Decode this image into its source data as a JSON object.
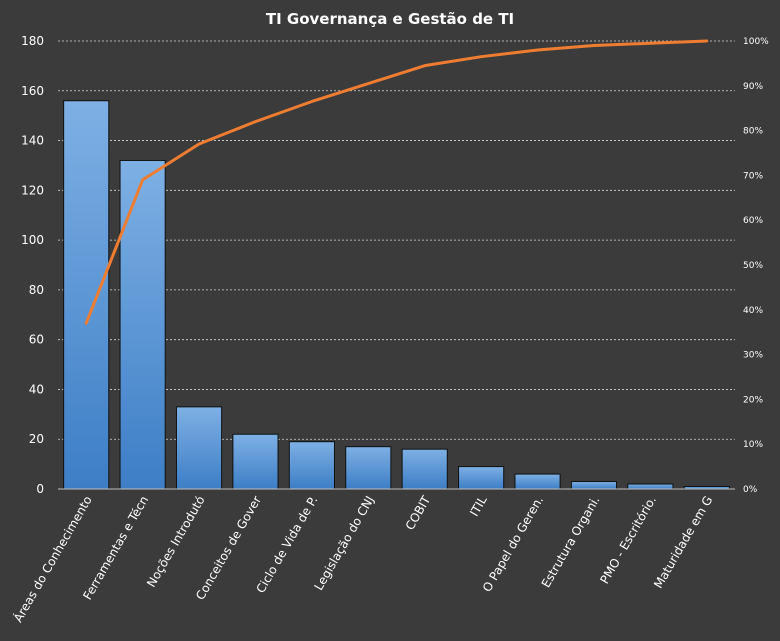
{
  "chart_data": {
    "type": "bar",
    "title": "TI Governança  e Gestão  de TI",
    "categories": [
      "Áreas do Conhecimento",
      "Ferramentas e Técn",
      "Noções Introdutó",
      "Conceitos de Gover",
      "Ciclo de Vida de P.",
      "Legislação do CNJ",
      "COBIT",
      "ITIL",
      "O Papel do Geren.",
      "Estrutura Organi.",
      "PMO - Escritório.",
      "Maturidade em G"
    ],
    "series": [
      {
        "type": "bar",
        "axis": "left",
        "values": [
          156,
          132,
          33,
          22,
          19,
          17,
          16,
          9,
          6,
          3,
          2,
          1
        ]
      },
      {
        "type": "line",
        "axis": "right",
        "values": [
          37,
          69,
          77,
          82,
          86.5,
          90.5,
          94.5,
          96.5,
          98,
          99,
          99.5,
          100
        ]
      }
    ],
    "ylim": [
      0,
      180
    ],
    "yticks": [
      "0",
      "20",
      "40",
      "60",
      "80",
      "100",
      "120",
      "140",
      "160",
      "180"
    ],
    "y2lim": [
      0,
      100
    ],
    "y2ticks": [
      "0%",
      "10%",
      "20%",
      "30%",
      "40%",
      "50%",
      "60%",
      "70%",
      "80%",
      "90%",
      "100%"
    ],
    "grid": true,
    "legend": "none",
    "colors": {
      "background": "#3b3b3b",
      "bar_top": "#7eb0e4",
      "bar_bottom": "#3d7ec6",
      "line": "#ef7d31",
      "grid": "#d8d8d8",
      "text": "#ffffff"
    }
  }
}
